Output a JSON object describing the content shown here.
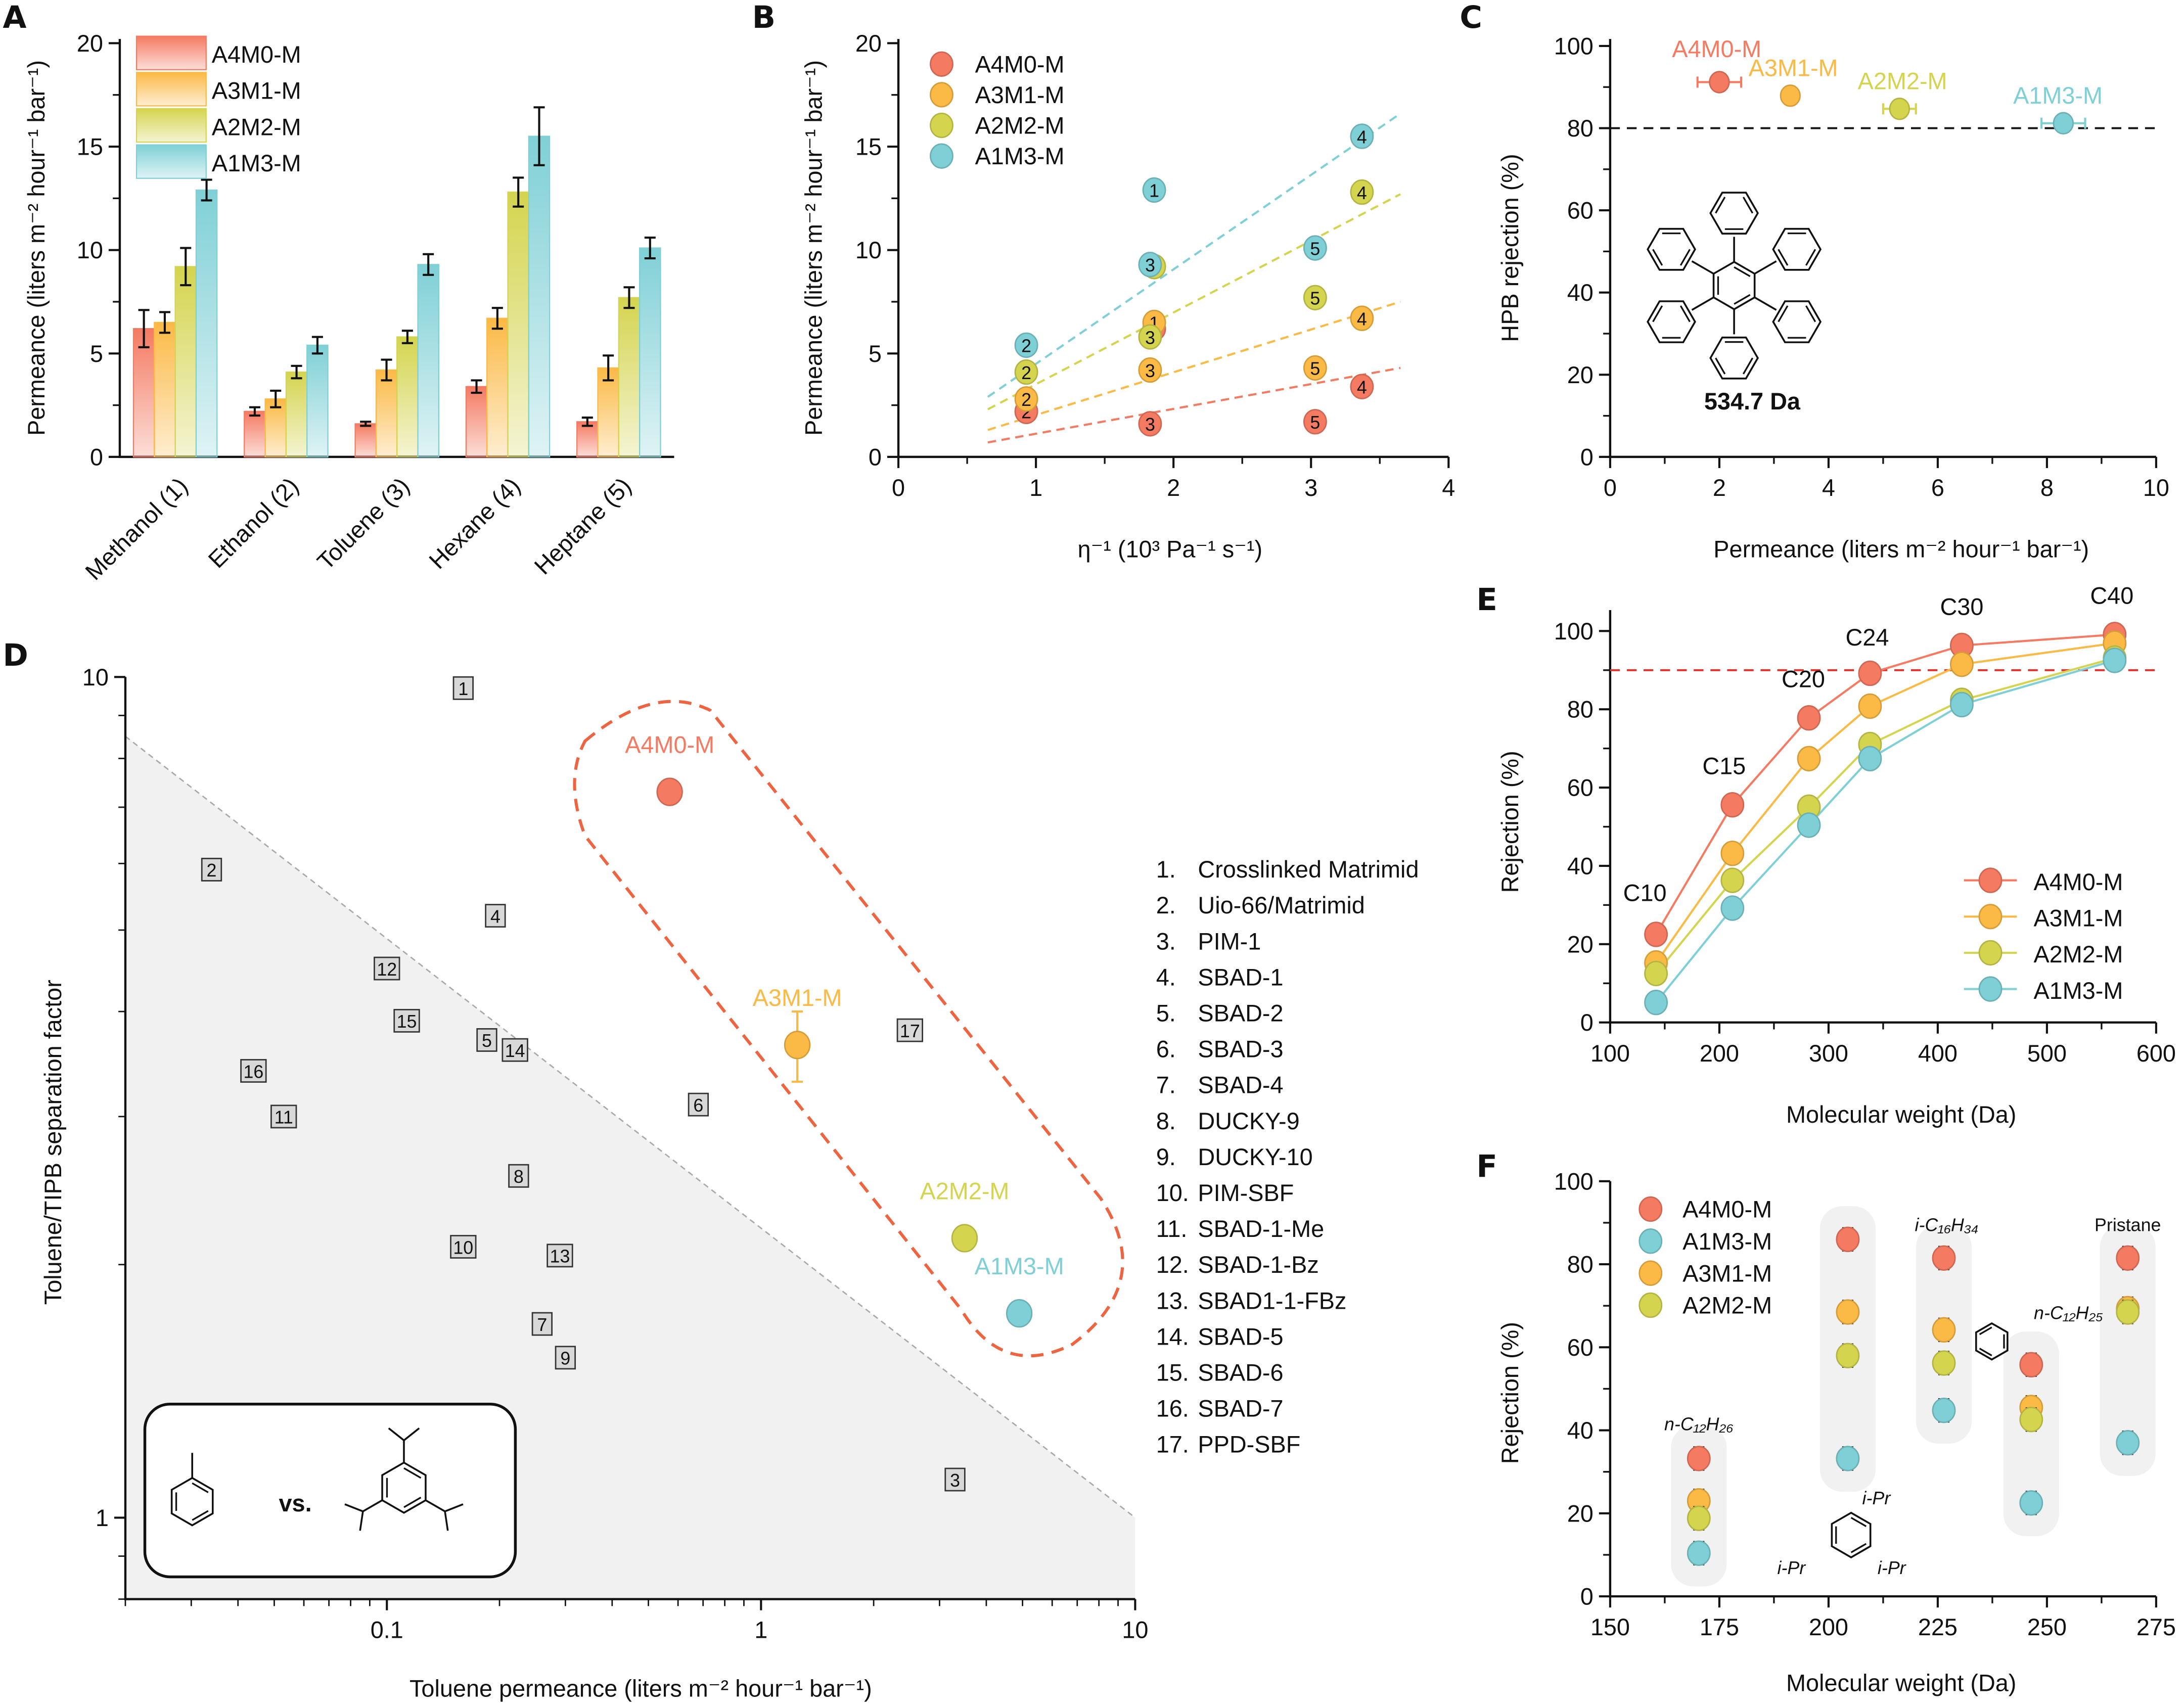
{
  "colors": {
    "A4M0-M": "#f47a62",
    "A3M1-M": "#fbb945",
    "A2M2-M": "#d4d44f",
    "A1M3-M": "#7fd0d6"
  },
  "chart_data": [
    {
      "panel": "A",
      "type": "bar",
      "ylabel": "Permeance (liters m⁻² hour⁻¹ bar⁻¹)",
      "xlabel": "",
      "ylim": [
        0,
        20
      ],
      "yticks": [
        0,
        5,
        10,
        15,
        20
      ],
      "categories": [
        "Methanol (1)",
        "Ethanol (2)",
        "Toluene (3)",
        "Hexane (4)",
        "Heptane (5)"
      ],
      "legend": "top-left",
      "series": [
        {
          "name": "A4M0-M",
          "values": [
            6.2,
            2.2,
            1.6,
            3.4,
            1.7
          ],
          "errors": [
            0.9,
            0.2,
            0.1,
            0.3,
            0.2
          ]
        },
        {
          "name": "A3M1-M",
          "values": [
            6.5,
            2.8,
            4.2,
            6.7,
            4.3
          ],
          "errors": [
            0.5,
            0.4,
            0.5,
            0.5,
            0.6
          ]
        },
        {
          "name": "A2M2-M",
          "values": [
            9.2,
            4.1,
            5.8,
            12.8,
            7.7
          ],
          "errors": [
            0.9,
            0.3,
            0.3,
            0.7,
            0.5
          ]
        },
        {
          "name": "A1M3-M",
          "values": [
            12.9,
            5.4,
            9.3,
            15.5,
            10.1
          ],
          "errors": [
            0.5,
            0.4,
            0.5,
            1.4,
            0.5
          ]
        }
      ]
    },
    {
      "panel": "B",
      "type": "scatter",
      "xlabel": "η⁻¹ (10³ Pa⁻¹ s⁻¹)",
      "ylabel": "Permeance (liters m⁻² hour⁻¹ bar⁻¹)",
      "xlim": [
        0,
        4
      ],
      "ylim": [
        0,
        20
      ],
      "xticks": [
        0,
        1,
        2,
        3,
        4
      ],
      "yticks": [
        0,
        5,
        10,
        15,
        20
      ],
      "legend": "top-left",
      "series": [
        {
          "name": "A4M0-M",
          "points": [
            [
              0.93,
              2.2,
              "2"
            ],
            [
              1.83,
              1.6,
              "3"
            ],
            [
              1.86,
              6.2,
              "1"
            ],
            [
              3.03,
              1.7,
              "5"
            ],
            [
              3.37,
              3.4,
              "4"
            ]
          ],
          "fit": [
            [
              0.65,
              0.7
            ],
            [
              3.65,
              4.3
            ]
          ]
        },
        {
          "name": "A3M1-M",
          "points": [
            [
              0.93,
              2.8,
              "2"
            ],
            [
              1.83,
              4.2,
              "3"
            ],
            [
              1.86,
              6.5,
              "1"
            ],
            [
              3.03,
              4.3,
              "5"
            ],
            [
              3.37,
              6.7,
              "4"
            ]
          ],
          "fit": [
            [
              0.65,
              1.3
            ],
            [
              3.65,
              7.5
            ]
          ]
        },
        {
          "name": "A2M2-M",
          "points": [
            [
              0.93,
              4.1,
              "2"
            ],
            [
              1.83,
              5.8,
              "3"
            ],
            [
              1.86,
              9.2,
              "1"
            ],
            [
              3.03,
              7.7,
              "5"
            ],
            [
              3.37,
              12.8,
              "4"
            ]
          ],
          "fit": [
            [
              0.65,
              2.3
            ],
            [
              3.65,
              12.7
            ]
          ]
        },
        {
          "name": "A1M3-M",
          "points": [
            [
              0.93,
              5.4,
              "2"
            ],
            [
              1.83,
              9.3,
              "3"
            ],
            [
              1.86,
              12.9,
              "1"
            ],
            [
              3.03,
              10.1,
              "5"
            ],
            [
              3.37,
              15.5,
              "4"
            ]
          ],
          "fit": [
            [
              0.65,
              2.9
            ],
            [
              3.65,
              16.6
            ]
          ]
        }
      ]
    },
    {
      "panel": "C",
      "type": "scatter",
      "xlabel": "Permeance (liters m⁻² hour⁻¹ bar⁻¹)",
      "ylabel": "HPB rejection (%)",
      "xlim": [
        0,
        10
      ],
      "ylim": [
        0,
        100
      ],
      "xticks": [
        0,
        2,
        4,
        6,
        8,
        10
      ],
      "yticks": [
        0,
        20,
        40,
        60,
        80,
        100
      ],
      "reference_line": 80,
      "annotation": "534.7 Da",
      "points": [
        {
          "name": "A4M0-M",
          "x": 2.0,
          "y": 91.2,
          "xerr": 0.4
        },
        {
          "name": "A3M1-M",
          "x": 3.3,
          "y": 87.9,
          "xerr": 0.1
        },
        {
          "name": "A2M2-M",
          "x": 5.3,
          "y": 84.7,
          "xerr": 0.3
        },
        {
          "name": "A1M3-M",
          "x": 8.3,
          "y": 81.2,
          "xerr": 0.4
        }
      ]
    },
    {
      "panel": "D",
      "type": "scatter",
      "xlabel": "Toluene permeance (liters m⁻² hour⁻¹ bar⁻¹)",
      "ylabel": "Toluene/TIPB separation factor",
      "xscale": "log",
      "yscale": "log",
      "xlim": [
        0.02,
        10
      ],
      "ylim": [
        0.8,
        10
      ],
      "xticks": [
        0.1,
        1,
        10
      ],
      "yticks": [
        1,
        10
      ],
      "inset": "toluene vs. TIPB",
      "inset_text": "vs.",
      "literature": [
        {
          "id": "1",
          "name": "Crosslinked Matrimid",
          "x": 0.16,
          "y": 9.7
        },
        {
          "id": "2",
          "name": "Uio-66/Matrimid",
          "x": 0.034,
          "y": 5.9
        },
        {
          "id": "3",
          "name": "PIM-1",
          "x": 3.3,
          "y": 1.11
        },
        {
          "id": "4",
          "name": "SBAD-1",
          "x": 0.195,
          "y": 5.2
        },
        {
          "id": "5",
          "name": "SBAD-2",
          "x": 0.185,
          "y": 3.7
        },
        {
          "id": "6",
          "name": "SBAD-3",
          "x": 0.68,
          "y": 3.1
        },
        {
          "id": "7",
          "name": "SBAD-4",
          "x": 0.26,
          "y": 1.7
        },
        {
          "id": "8",
          "name": "DUCKY-9",
          "x": 0.225,
          "y": 2.55
        },
        {
          "id": "9",
          "name": "DUCKY-10",
          "x": 0.3,
          "y": 1.55
        },
        {
          "id": "10",
          "name": "PIM-SBF",
          "x": 0.16,
          "y": 2.1
        },
        {
          "id": "11",
          "name": "SBAD-1-Me",
          "x": 0.053,
          "y": 3.0
        },
        {
          "id": "12",
          "name": "SBAD-1-Bz",
          "x": 0.1,
          "y": 4.5
        },
        {
          "id": "13",
          "name": "SBAD1-1-FBz",
          "x": 0.29,
          "y": 2.05
        },
        {
          "id": "14",
          "name": "SBAD-5",
          "x": 0.22,
          "y": 3.6
        },
        {
          "id": "15",
          "name": "SBAD-6",
          "x": 0.113,
          "y": 3.9
        },
        {
          "id": "16",
          "name": "SBAD-7",
          "x": 0.044,
          "y": 3.4
        },
        {
          "id": "17",
          "name": "PPD-SBF",
          "x": 2.5,
          "y": 3.8
        }
      ],
      "this_work": [
        {
          "name": "A4M0-M",
          "x": 0.57,
          "y": 7.3
        },
        {
          "name": "A3M1-M",
          "x": 1.25,
          "y": 3.65,
          "yerr": [
            3.3,
            4.0
          ]
        },
        {
          "name": "A2M2-M",
          "x": 3.5,
          "y": 2.15
        },
        {
          "name": "A1M3-M",
          "x": 4.9,
          "y": 1.75
        }
      ],
      "upper_bound": [
        [
          0.02,
          8.5
        ],
        [
          10,
          1.0
        ]
      ]
    },
    {
      "panel": "E",
      "type": "line",
      "xlabel": "Molecular weight (Da)",
      "ylabel": "Rejection (%)",
      "xlim": [
        100,
        600
      ],
      "ylim": [
        0,
        105
      ],
      "xticks": [
        100,
        200,
        300,
        400,
        500,
        600
      ],
      "yticks": [
        0,
        20,
        40,
        60,
        80,
        100
      ],
      "reference_line": 90,
      "legend": "bottom-right",
      "x": [
        142,
        212,
        282,
        338,
        422,
        562
      ],
      "point_labels": [
        "C10",
        "C15",
        "C20",
        "C24",
        "C30",
        "C40"
      ],
      "series": [
        {
          "name": "A4M0-M",
          "values": [
            22.5,
            55.6,
            77.8,
            89.2,
            96.3,
            99.1
          ]
        },
        {
          "name": "A3M1-M",
          "values": [
            15.2,
            43.2,
            67.4,
            80.8,
            91.5,
            96.9
          ]
        },
        {
          "name": "A2M2-M",
          "values": [
            12.5,
            36.3,
            55.0,
            71.0,
            82.3,
            93.1
          ]
        },
        {
          "name": "A1M3-M",
          "values": [
            5.1,
            29.2,
            50.4,
            67.4,
            81.2,
            92.5
          ]
        }
      ]
    },
    {
      "panel": "F",
      "type": "scatter",
      "xlabel": "Molecular weight (Da)",
      "ylabel": "Rejection (%)",
      "xlim": [
        150,
        275
      ],
      "ylim": [
        0,
        100
      ],
      "xticks": [
        150,
        175,
        200,
        225,
        250,
        275
      ],
      "yticks": [
        0,
        20,
        40,
        60,
        80,
        100
      ],
      "legend": "top-left",
      "legend_order": [
        "A4M0-M",
        "A1M3-M",
        "A3M1-M",
        "A2M2-M"
      ],
      "groups": [
        {
          "x": 170.3,
          "label": "n-C₁₂H₂₆",
          "values": {
            "A4M0-M": 33.2,
            "A3M1-M": 23.0,
            "A2M2-M": 18.8,
            "A1M3-M": 10.4
          }
        },
        {
          "x": 204.4,
          "label": "TIPB",
          "sub_labels": [
            "i-Pr",
            "i-Pr",
            "i-Pr"
          ],
          "values": {
            "A4M0-M": 86.0,
            "A3M1-M": 68.5,
            "A2M2-M": 58.0,
            "A1M3-M": 33.2
          }
        },
        {
          "x": 226.4,
          "label": "i-C₁₆H₃₄",
          "values": {
            "A4M0-M": 81.5,
            "A3M1-M": 64.2,
            "A2M2-M": 56.2,
            "A1M3-M": 44.8
          }
        },
        {
          "x": 246.4,
          "label": "n-C₁₂H₂₅ (dodecylbenzene)",
          "values": {
            "A4M0-M": 55.8,
            "A3M1-M": 45.5,
            "A2M2-M": 42.6,
            "A1M3-M": 22.5
          }
        },
        {
          "x": 268.5,
          "label": "Pristane",
          "values": {
            "A4M0-M": 81.5,
            "A3M1-M": 69.3,
            "A2M2-M": 68.5,
            "A1M3-M": 37.0
          }
        }
      ]
    }
  ],
  "labels": {
    "A": "A",
    "B": "B",
    "C": "C",
    "D": "D",
    "E": "E",
    "F": "F",
    "vs": "vs.",
    "hpb_mw": "534.7 Da",
    "ipr": "i-Pr",
    "nc12h26": "n-C₁₂H₂₆",
    "ic16h34": "i-C₁₆H₃₄",
    "nc12h25": "n-C₁₂H₂₅",
    "pristane": "Pristane"
  }
}
